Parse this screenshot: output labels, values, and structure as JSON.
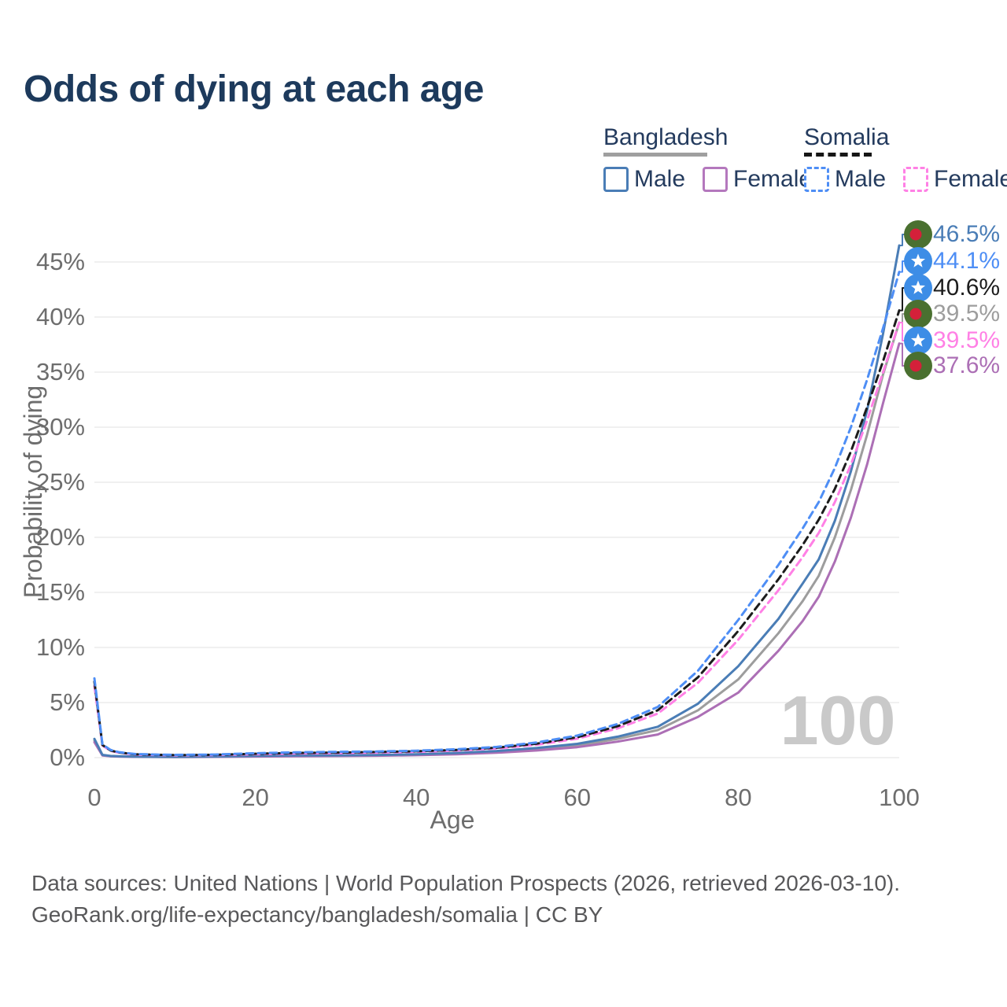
{
  "title": "Odds of dying at each age",
  "legend": {
    "groups": [
      {
        "label": "Bangladesh",
        "line_style": "solid",
        "underline_color": "#9f9f9f",
        "items": [
          {
            "label": "Male",
            "color": "#4a7db6",
            "dashed": false
          },
          {
            "label": "Female",
            "color": "#b478bd",
            "dashed": false
          }
        ]
      },
      {
        "label": "Somalia",
        "line_style": "dashed",
        "underline_color": "#161616",
        "items": [
          {
            "label": "Male",
            "color": "#4e8ef5",
            "dashed": true
          },
          {
            "label": "Female",
            "color": "#ff80e5",
            "dashed": true
          }
        ]
      }
    ]
  },
  "chart_data": {
    "type": "line",
    "title": "Odds of dying at each age",
    "xlabel": "Age",
    "ylabel": "Probability of dying",
    "xlim": [
      0,
      100
    ],
    "ylim_percent": [
      0,
      47
    ],
    "grid": "horizontal-only",
    "x_tick_labels": [
      "0",
      "20",
      "40",
      "60",
      "80",
      "100"
    ],
    "x_tick_values": [
      0,
      20,
      40,
      60,
      80,
      100
    ],
    "y_tick_labels": [
      "0%",
      "5%",
      "10%",
      "15%",
      "20%",
      "25%",
      "30%",
      "35%",
      "40%",
      "45%"
    ],
    "y_tick_values_percent": [
      0,
      5,
      10,
      15,
      20,
      25,
      30,
      35,
      40,
      45
    ],
    "watermark": "100",
    "ages": [
      0,
      1,
      2,
      3,
      5,
      8,
      10,
      15,
      20,
      25,
      30,
      35,
      40,
      45,
      50,
      55,
      60,
      65,
      70,
      75,
      80,
      85,
      88,
      90,
      92,
      94,
      96,
      98,
      100
    ],
    "series": [
      {
        "name": "Bangladesh Male",
        "country": "Bangladesh",
        "sex": "Male",
        "color": "#4a7db6",
        "dashed": false,
        "flag": "bangladesh",
        "end_label": "46.5%",
        "end_value_percent": 46.5,
        "values_percent": [
          1.7,
          0.25,
          0.15,
          0.12,
          0.09,
          0.075,
          0.07,
          0.1,
          0.16,
          0.19,
          0.21,
          0.24,
          0.3,
          0.42,
          0.6,
          0.87,
          1.25,
          1.9,
          2.8,
          4.9,
          8.3,
          12.6,
          15.8,
          18.0,
          21.5,
          26.0,
          31.5,
          38.5,
          46.5
        ]
      },
      {
        "name": "Bangladesh Female",
        "country": "Bangladesh",
        "sex": "Female",
        "color": "#ac6fb5",
        "dashed": false,
        "flag": "bangladesh",
        "end_label": "37.6%",
        "end_value_percent": 37.6,
        "values_percent": [
          1.4,
          0.2,
          0.12,
          0.1,
          0.07,
          0.062,
          0.06,
          0.07,
          0.1,
          0.12,
          0.14,
          0.17,
          0.22,
          0.3,
          0.44,
          0.65,
          0.95,
          1.45,
          2.1,
          3.7,
          5.9,
          9.7,
          12.4,
          14.6,
          17.8,
          21.8,
          26.6,
          32.2,
          37.6
        ]
      },
      {
        "name": "Bangladesh Both sexes",
        "country": "Bangladesh",
        "sex": "Both",
        "color": "#9d9d9d",
        "dashed": false,
        "flag": "bangladesh",
        "end_label": "39.5%",
        "end_value_percent": 39.5,
        "values_percent": [
          1.55,
          0.22,
          0.13,
          0.11,
          0.08,
          0.065,
          0.06,
          0.08,
          0.13,
          0.16,
          0.18,
          0.21,
          0.26,
          0.36,
          0.52,
          0.76,
          1.1,
          1.7,
          2.5,
          4.3,
          7.1,
          11.3,
          14.2,
          16.5,
          20.0,
          24.3,
          29.3,
          34.8,
          39.5
        ]
      },
      {
        "name": "Somalia Male",
        "country": "Somalia",
        "sex": "Male",
        "color": "#4e8ef5",
        "dashed": true,
        "flag": "somalia",
        "end_label": "44.1%",
        "end_value_percent": 44.1,
        "values_percent": [
          7.2,
          1.2,
          0.7,
          0.5,
          0.33,
          0.27,
          0.25,
          0.28,
          0.4,
          0.48,
          0.52,
          0.56,
          0.63,
          0.76,
          0.97,
          1.38,
          2.0,
          3.05,
          4.6,
          7.9,
          12.5,
          17.5,
          20.8,
          23.2,
          26.3,
          30.0,
          34.3,
          39.0,
          44.1
        ]
      },
      {
        "name": "Somalia Female",
        "country": "Somalia",
        "sex": "Female",
        "color": "#ff80e5",
        "dashed": true,
        "flag": "somalia",
        "end_label": "39.5%",
        "end_value_percent": 39.5,
        "values_percent": [
          6.5,
          1.1,
          0.62,
          0.45,
          0.28,
          0.23,
          0.21,
          0.23,
          0.31,
          0.37,
          0.41,
          0.45,
          0.52,
          0.64,
          0.83,
          1.17,
          1.72,
          2.65,
          4.0,
          6.8,
          10.7,
          15.2,
          18.2,
          20.4,
          23.2,
          26.6,
          30.6,
          35.0,
          39.5
        ]
      },
      {
        "name": "Somalia Both sexes",
        "country": "Somalia",
        "sex": "Both",
        "color": "#1c1c1c",
        "dashed": true,
        "flag": "somalia",
        "end_label": "40.6%",
        "end_value_percent": 40.6,
        "values_percent": [
          6.9,
          1.15,
          0.65,
          0.47,
          0.3,
          0.25,
          0.23,
          0.25,
          0.35,
          0.42,
          0.46,
          0.51,
          0.58,
          0.7,
          0.9,
          1.27,
          1.85,
          2.85,
          4.3,
          7.3,
          11.5,
          16.2,
          19.3,
          21.6,
          24.4,
          27.8,
          31.8,
          36.0,
          40.6
        ]
      }
    ],
    "flag_colors": {
      "bangladesh_green": "#4a7030",
      "bangladesh_red": "#d4203a",
      "somalia_blue": "#3d8de6",
      "somalia_star": "#ffffff"
    }
  },
  "footer": {
    "line1": "Data sources: United Nations | World Population Prospects (2026, retrieved 2026-03-10).",
    "line2": "GeoRank.org/life-expectancy/bangladesh/somalia | CC BY"
  }
}
